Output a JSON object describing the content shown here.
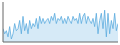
{
  "chart_data": {
    "type": "area",
    "values": [
      3.0,
      2.5,
      2.8,
      2.2,
      3.2,
      2.0,
      2.5,
      3.5,
      2.8,
      3.0,
      3.8,
      2.5,
      4.2,
      2.8,
      3.5,
      2.5,
      3.8,
      3.0,
      3.5,
      3.2,
      4.0,
      3.0,
      4.2,
      3.5,
      4.0,
      3.5,
      3.8,
      4.0,
      3.5,
      4.2,
      3.8,
      4.5,
      3.5,
      4.0,
      3.8,
      4.2,
      3.5,
      4.0,
      3.5,
      4.2,
      3.8,
      3.5,
      4.2,
      3.8,
      4.0,
      3.5,
      4.5,
      3.5,
      4.2,
      4.5,
      3.5,
      4.2,
      3.8,
      3.5,
      4.0,
      3.2,
      4.5,
      2.5,
      3.8,
      4.5,
      3.0,
      4.8,
      2.2,
      4.5,
      2.5,
      3.8,
      3.0,
      4.5,
      2.8,
      3.5
    ],
    "color": "#5aabde",
    "xlim": [
      0,
      69
    ],
    "ylim": [
      1.7,
      5.6
    ],
    "grid": false,
    "tick_labels": false
  }
}
